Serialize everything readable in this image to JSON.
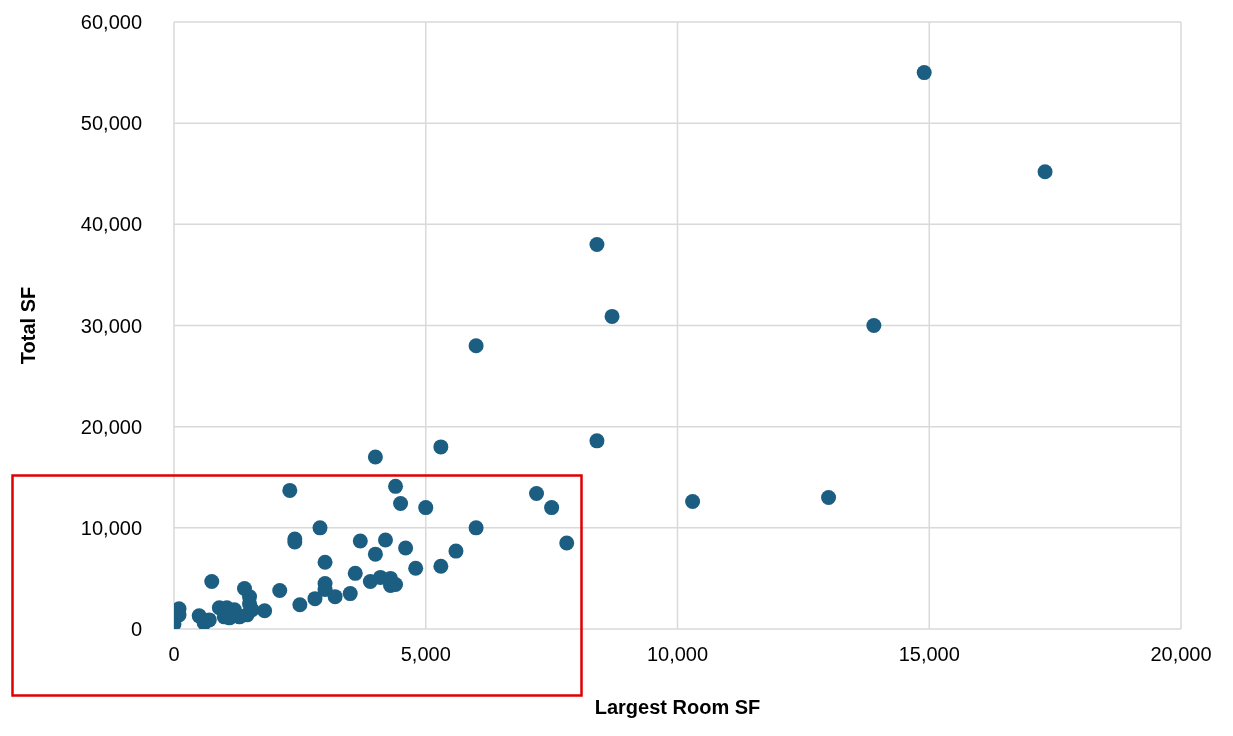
{
  "chart_data": {
    "type": "scatter",
    "xlabel": "Largest Room SF",
    "ylabel": "Total SF",
    "xlim": [
      0,
      20000
    ],
    "ylim": [
      0,
      60000
    ],
    "xticks": [
      {
        "value": 0,
        "label": "0"
      },
      {
        "value": 5000,
        "label": "5,000"
      },
      {
        "value": 10000,
        "label": "10,000"
      },
      {
        "value": 15000,
        "label": "15,000"
      },
      {
        "value": 20000,
        "label": "20,000"
      }
    ],
    "yticks": [
      {
        "value": 0,
        "label": "0"
      },
      {
        "value": 10000,
        "label": "10,000"
      },
      {
        "value": 20000,
        "label": "20,000"
      },
      {
        "value": 30000,
        "label": "30,000"
      },
      {
        "value": 40000,
        "label": "40,000"
      },
      {
        "value": 50000,
        "label": "50,000"
      },
      {
        "value": 60000,
        "label": "60,000"
      }
    ],
    "grid": true,
    "marker": "circle",
    "series": [
      {
        "color": "#1b5e82",
        "x": [
          14900,
          17300,
          8400,
          8700,
          13900,
          6000,
          8400,
          5300,
          4000,
          10300,
          13000,
          7200,
          7500,
          7800,
          2300,
          4400,
          4500,
          5000,
          6000,
          2900,
          2400,
          2400,
          3700,
          4200,
          4000,
          4600,
          5600,
          3000,
          4800,
          5300,
          3600,
          3900,
          4100,
          4300,
          4400,
          4300,
          3000,
          3000,
          2800,
          3500,
          3200,
          2500,
          750,
          1400,
          1500,
          2100,
          1800,
          1500,
          900,
          1050,
          1200,
          1000,
          1100,
          1300,
          1450,
          1550,
          500,
          600,
          700,
          100,
          100,
          0
        ],
        "values": [
          55000,
          45200,
          38000,
          30900,
          30000,
          28000,
          18600,
          18000,
          17000,
          12600,
          13000,
          13400,
          12000,
          8500,
          13700,
          14100,
          12400,
          12000,
          10000,
          10000,
          8900,
          8600,
          8700,
          8800,
          7400,
          8000,
          7700,
          6600,
          6000,
          6200,
          5500,
          4700,
          5100,
          5000,
          4400,
          4300,
          4500,
          3900,
          3000,
          3500,
          3200,
          2400,
          4700,
          4000,
          3200,
          3800,
          1800,
          2500,
          2100,
          2100,
          1900,
          1200,
          1100,
          1200,
          1400,
          1900,
          1300,
          600,
          900,
          2000,
          1400,
          500
        ]
      }
    ]
  }
}
